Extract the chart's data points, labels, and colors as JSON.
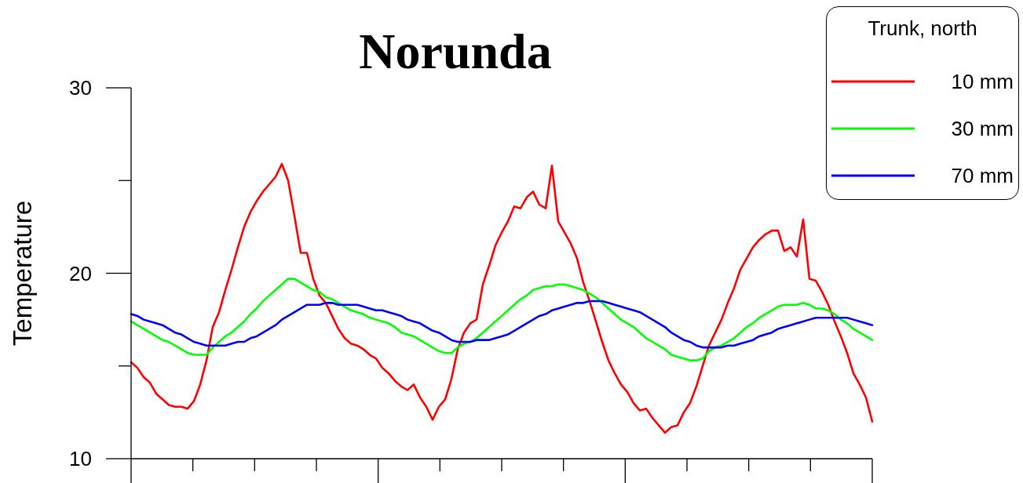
{
  "chart_data": {
    "type": "line",
    "title": "Norunda",
    "ylabel": "Temperature",
    "legend_title": "Trunk, north",
    "categories": [
      null,
      null,
      null,
      null,
      null,
      null,
      null,
      null,
      null,
      null,
      null,
      null,
      null,
      null,
      null,
      null,
      null,
      null,
      null,
      null,
      null,
      null,
      null,
      null,
      null,
      null,
      null,
      null,
      null,
      null,
      null,
      null,
      null,
      null,
      null,
      null,
      null,
      null,
      null,
      null,
      null,
      null,
      null,
      null,
      null,
      null,
      null,
      null,
      null,
      null,
      null,
      null,
      null,
      null,
      null,
      null,
      null,
      null,
      null,
      null,
      null,
      null,
      null,
      null,
      null,
      null,
      null,
      null,
      null,
      null,
      null,
      null,
      null,
      null,
      null,
      null,
      null,
      null,
      null,
      null,
      null,
      null,
      null,
      null,
      null,
      null,
      null,
      null,
      null,
      null,
      null,
      null,
      null,
      null,
      null,
      null,
      null,
      null,
      null,
      null,
      null,
      null,
      null,
      null,
      null,
      null,
      null,
      null,
      null,
      null,
      null,
      null,
      null,
      null,
      null,
      null,
      null,
      null,
      null
    ],
    "series": [
      {
        "name": "10 mm",
        "color": "#ff0000",
        "values": [
          15.2,
          14.9,
          14.4,
          14.1,
          13.5,
          13.2,
          12.9,
          12.8,
          12.8,
          12.7,
          13.1,
          14.0,
          15.3,
          17.1,
          17.9,
          19.1,
          20.2,
          21.4,
          22.5,
          23.3,
          23.9,
          24.4,
          24.8,
          25.2,
          25.9,
          25.0,
          23.1,
          21.1,
          21.1,
          19.7,
          18.8,
          18.4,
          17.7,
          17.0,
          16.5,
          16.2,
          16.1,
          15.9,
          15.6,
          15.4,
          14.9,
          14.6,
          14.2,
          13.9,
          13.7,
          14.0,
          13.3,
          12.8,
          12.1,
          12.8,
          13.2,
          14.3,
          15.9,
          16.8,
          17.3,
          17.5,
          19.4,
          20.4,
          21.5,
          22.2,
          22.8,
          23.6,
          23.5,
          24.1,
          24.4,
          23.7,
          23.5,
          25.8,
          22.8,
          22.2,
          21.6,
          20.8,
          19.5,
          18.5,
          17.4,
          16.3,
          15.3,
          14.6,
          14.0,
          13.6,
          13.0,
          12.6,
          12.7,
          12.2,
          11.8,
          11.4,
          11.7,
          11.8,
          12.5,
          13.0,
          13.9,
          15.0,
          16.1,
          16.8,
          17.5,
          18.4,
          19.2,
          20.2,
          20.8,
          21.4,
          21.8,
          22.1,
          22.3,
          22.3,
          21.2,
          21.4,
          20.9,
          22.9,
          19.7,
          19.6,
          19.0,
          18.3,
          17.4,
          16.6,
          15.7,
          14.6,
          14.0,
          13.3,
          12.0
        ]
      },
      {
        "name": "30 mm",
        "color": "#00ff00",
        "values": [
          17.4,
          17.2,
          17.0,
          16.8,
          16.6,
          16.4,
          16.3,
          16.1,
          15.9,
          15.7,
          15.6,
          15.6,
          15.6,
          16.0,
          16.3,
          16.6,
          16.8,
          17.1,
          17.4,
          17.8,
          18.1,
          18.5,
          18.8,
          19.1,
          19.4,
          19.7,
          19.7,
          19.5,
          19.3,
          19.1,
          19.0,
          18.7,
          18.6,
          18.4,
          18.2,
          18.0,
          17.9,
          17.8,
          17.6,
          17.5,
          17.4,
          17.3,
          17.1,
          16.8,
          16.7,
          16.6,
          16.4,
          16.2,
          16.0,
          15.8,
          15.7,
          15.7,
          16.0,
          16.2,
          16.3,
          16.5,
          16.8,
          17.1,
          17.4,
          17.7,
          18.0,
          18.3,
          18.6,
          18.8,
          19.1,
          19.2,
          19.3,
          19.3,
          19.4,
          19.4,
          19.3,
          19.2,
          19.1,
          18.9,
          18.7,
          18.4,
          18.1,
          17.8,
          17.5,
          17.3,
          17.1,
          16.8,
          16.5,
          16.3,
          16.1,
          15.9,
          15.6,
          15.5,
          15.4,
          15.3,
          15.3,
          15.4,
          15.8,
          16.0,
          16.1,
          16.3,
          16.5,
          16.8,
          17.1,
          17.3,
          17.6,
          17.8,
          18.0,
          18.2,
          18.3,
          18.3,
          18.3,
          18.4,
          18.3,
          18.1,
          18.1,
          18.0,
          17.8,
          17.5,
          17.3,
          17.0,
          16.8,
          16.6,
          16.4
        ]
      },
      {
        "name": "70 mm",
        "color": "#0000ff",
        "values": [
          17.8,
          17.7,
          17.5,
          17.4,
          17.3,
          17.2,
          17.0,
          16.8,
          16.7,
          16.5,
          16.3,
          16.2,
          16.1,
          16.1,
          16.1,
          16.1,
          16.2,
          16.3,
          16.3,
          16.5,
          16.6,
          16.8,
          17.0,
          17.2,
          17.5,
          17.7,
          17.9,
          18.1,
          18.3,
          18.3,
          18.3,
          18.4,
          18.4,
          18.3,
          18.3,
          18.3,
          18.3,
          18.2,
          18.1,
          18.0,
          18.0,
          17.9,
          17.8,
          17.7,
          17.5,
          17.4,
          17.3,
          17.1,
          16.9,
          16.8,
          16.6,
          16.4,
          16.3,
          16.3,
          16.3,
          16.4,
          16.4,
          16.4,
          16.5,
          16.6,
          16.7,
          16.9,
          17.1,
          17.3,
          17.5,
          17.7,
          17.8,
          18.0,
          18.1,
          18.2,
          18.3,
          18.4,
          18.4,
          18.5,
          18.5,
          18.5,
          18.4,
          18.3,
          18.2,
          18.1,
          18.0,
          17.9,
          17.7,
          17.5,
          17.3,
          17.1,
          16.8,
          16.6,
          16.4,
          16.3,
          16.1,
          16.0,
          16.0,
          16.0,
          16.0,
          16.1,
          16.1,
          16.2,
          16.3,
          16.4,
          16.6,
          16.7,
          16.8,
          17.0,
          17.1,
          17.2,
          17.3,
          17.4,
          17.5,
          17.6,
          17.6,
          17.6,
          17.6,
          17.6,
          17.6,
          17.5,
          17.4,
          17.3,
          17.2
        ]
      }
    ],
    "ylim": [
      10,
      30
    ],
    "yticks": [
      10,
      {
        "value": 15,
        "label": null
      },
      20,
      {
        "value": 25,
        "label": null
      },
      30
    ],
    "legend": "top right",
    "marker": "none",
    "line_style": "solid"
  }
}
